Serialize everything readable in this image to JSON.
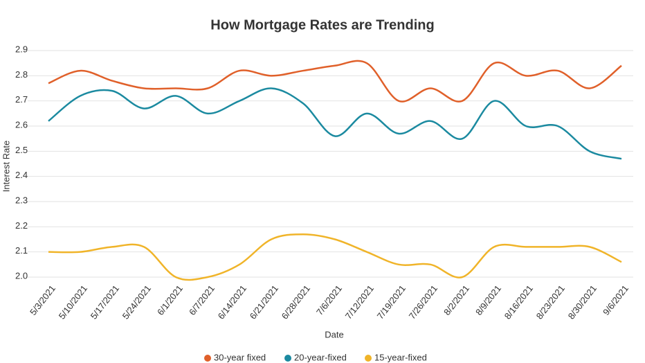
{
  "chart_data": {
    "type": "line",
    "title": "How Mortgage Rates are Trending",
    "x_label": "Date",
    "y_label": "Interest Rate",
    "categories": [
      "5/3/2021",
      "5/10/2021",
      "5/17/2021",
      "5/24/2021",
      "6/1/2021",
      "6/7/2021",
      "6/14/2021",
      "6/21/2021",
      "6/28/2021",
      "7/6/2021",
      "7/12/2021",
      "7/19/2021",
      "7/26/2021",
      "8/2/2021",
      "8/9/2021",
      "8/16/2021",
      "8/23/2021",
      "8/30/2021",
      "9/6/2021"
    ],
    "series": [
      {
        "name": "30-year fixed",
        "color": "#e0602a",
        "values": [
          2.77,
          2.82,
          2.78,
          2.75,
          2.75,
          2.75,
          2.82,
          2.8,
          2.82,
          2.84,
          2.85,
          2.7,
          2.75,
          2.7,
          2.85,
          2.8,
          2.82,
          2.75,
          2.84
        ]
      },
      {
        "name": "20-year-fixed",
        "color": "#1b8aa0",
        "values": [
          2.62,
          2.72,
          2.74,
          2.67,
          2.72,
          2.65,
          2.7,
          2.75,
          2.69,
          2.56,
          2.65,
          2.57,
          2.62,
          2.55,
          2.7,
          2.6,
          2.6,
          2.5,
          2.47
        ]
      },
      {
        "name": "15-year-fixed",
        "color": "#f0b429",
        "values": [
          2.1,
          2.1,
          2.12,
          2.12,
          2.0,
          2.0,
          2.05,
          2.15,
          2.17,
          2.15,
          2.1,
          2.05,
          2.05,
          2.0,
          2.12,
          2.12,
          2.12,
          2.12,
          2.06
        ]
      }
    ],
    "ylim": [
      2,
      2.9
    ],
    "yticks": [
      {
        "value": 2,
        "label": "2.0"
      },
      2.1,
      2.2,
      2.3,
      2.4,
      2.5,
      2.6,
      2.7,
      2.8,
      2.9
    ],
    "grid": true
  }
}
